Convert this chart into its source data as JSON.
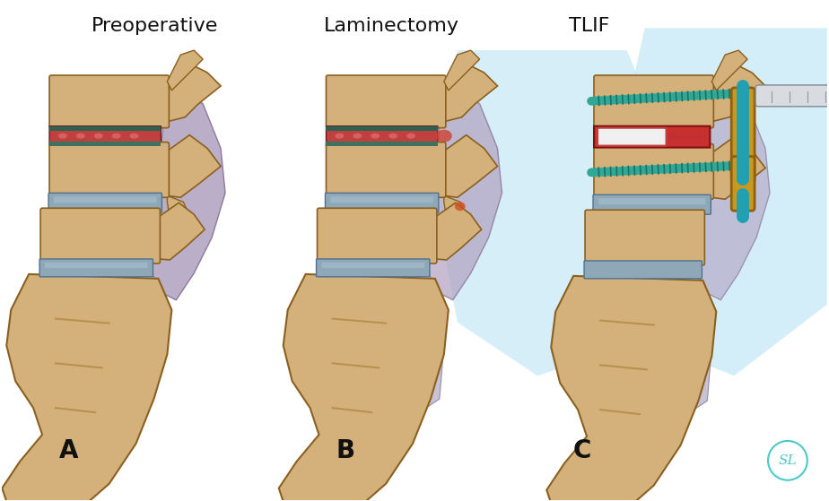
{
  "title_A": "Preoperative",
  "title_B": "Laminectomy",
  "title_C": "TLIF",
  "label_A": "A",
  "label_B": "B",
  "label_C": "C",
  "bg_color": "#ffffff",
  "title_fontsize": 16,
  "label_fontsize": 20,
  "title_color": "#111111",
  "watermark_color": "#4ec8c8",
  "watermark_text": "SL",
  "fig_width": 9.24,
  "fig_height": 5.59,
  "bone_fill": "#d4b07a",
  "bone_edge": "#8a6020",
  "bone_shadow": "#b89050",
  "disc_blue": "#8fa8b8",
  "disc_blue_light": "#a8bfcf",
  "damaged_disc_red": "#c04040",
  "damaged_disc_spot": "#d06060",
  "disc_green_top": "#306050",
  "disc_green_bot": "#407060",
  "nerve_lavender": "#b0a0c0",
  "nerve_edge": "#806890",
  "blue_glow": "#b0dff0",
  "screw_teal": "#30a898",
  "screw_dark": "#207060",
  "connector_gold": "#c89820",
  "connector_edge": "#906010",
  "tool_gray": "#c0c8d0",
  "tool_edge": "#707880",
  "red_implant": "#c83030",
  "white_cage": "#f0f0f0"
}
